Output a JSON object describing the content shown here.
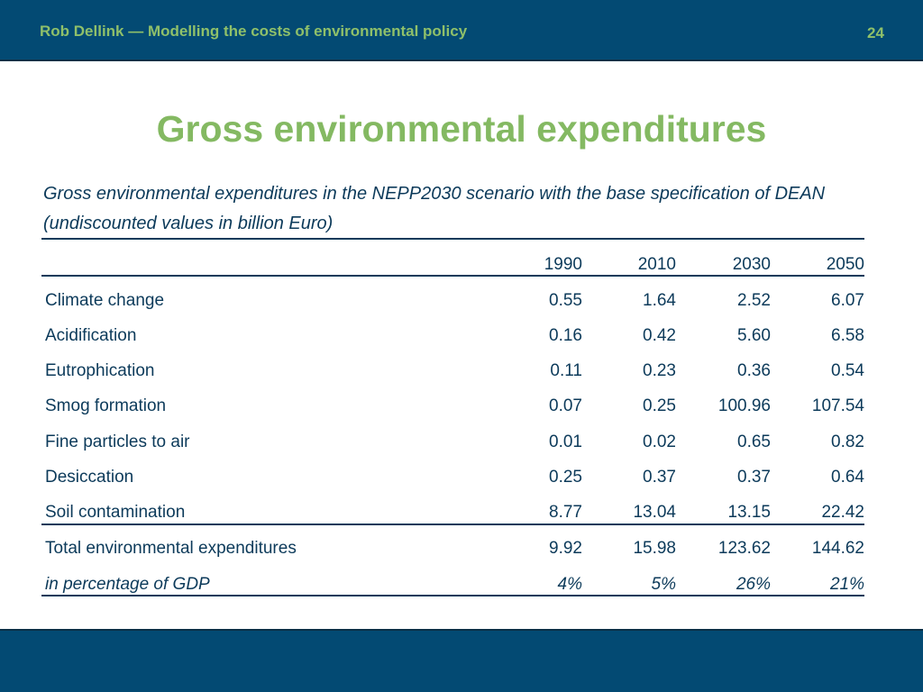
{
  "header": {
    "author_line": "Rob Dellink — Modelling the costs of environmental policy",
    "page_number": "24"
  },
  "title": "Gross environmental expenditures",
  "caption": "Gross environmental expenditures in the NEPP2030 scenario with the base specification of DEAN (undiscounted values in billion Euro)",
  "table": {
    "columns": [
      "1990",
      "2010",
      "2030",
      "2050"
    ],
    "rows": [
      {
        "label": "Climate change",
        "values": [
          "0.55",
          "1.64",
          "2.52",
          "6.07"
        ]
      },
      {
        "label": "Acidification",
        "values": [
          "0.16",
          "0.42",
          "5.60",
          "6.58"
        ]
      },
      {
        "label": "Eutrophication",
        "values": [
          "0.11",
          "0.23",
          "0.36",
          "0.54"
        ]
      },
      {
        "label": "Smog formation",
        "values": [
          "0.07",
          "0.25",
          "100.96",
          "107.54"
        ]
      },
      {
        "label": "Fine particles to air",
        "values": [
          "0.01",
          "0.02",
          "0.65",
          "0.82"
        ]
      },
      {
        "label": "Desiccation",
        "values": [
          "0.25",
          "0.37",
          "0.37",
          "0.64"
        ]
      },
      {
        "label": "Soil contamination",
        "values": [
          "8.77",
          "13.04",
          "13.15",
          "22.42"
        ]
      }
    ],
    "total": {
      "label": "Total environmental expenditures",
      "values": [
        "9.92",
        "15.98",
        "123.62",
        "144.62"
      ]
    },
    "gdp_share": {
      "label": "in percentage of GDP",
      "values": [
        "4%",
        "5%",
        "26%",
        "21%"
      ]
    }
  },
  "colors": {
    "bar": "#034a73",
    "accent_green": "#84b962",
    "text": "#0c3a5a"
  }
}
